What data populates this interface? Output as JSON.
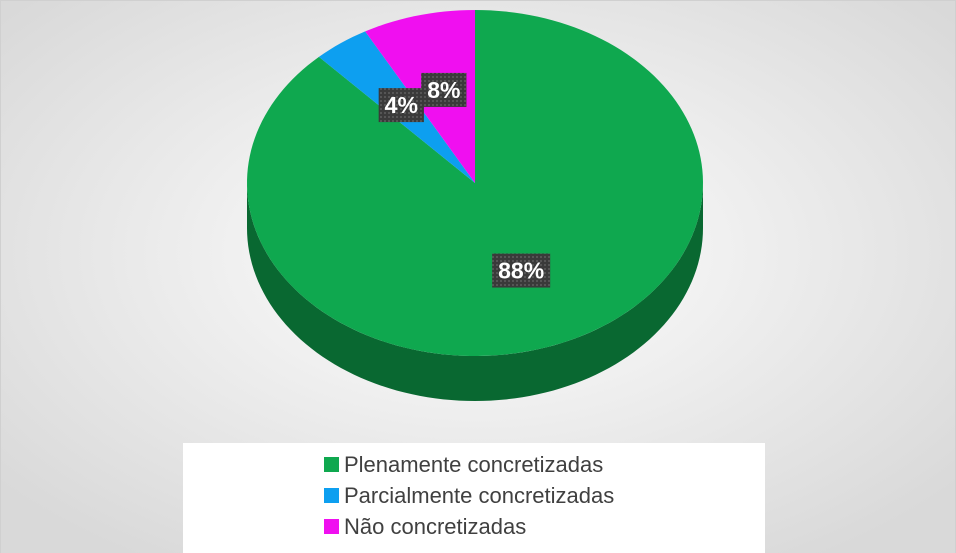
{
  "chart_data": {
    "type": "pie",
    "categories": [
      "Plenamente concretizadas",
      "Parcialmente concretizadas",
      "Não concretizadas"
    ],
    "values": [
      88,
      4,
      8
    ],
    "value_labels": [
      "88%",
      "4%",
      "8%"
    ],
    "colors": [
      "#0fa84f",
      "#0d9ff0",
      "#f00ff0"
    ],
    "legend": "bottom"
  }
}
